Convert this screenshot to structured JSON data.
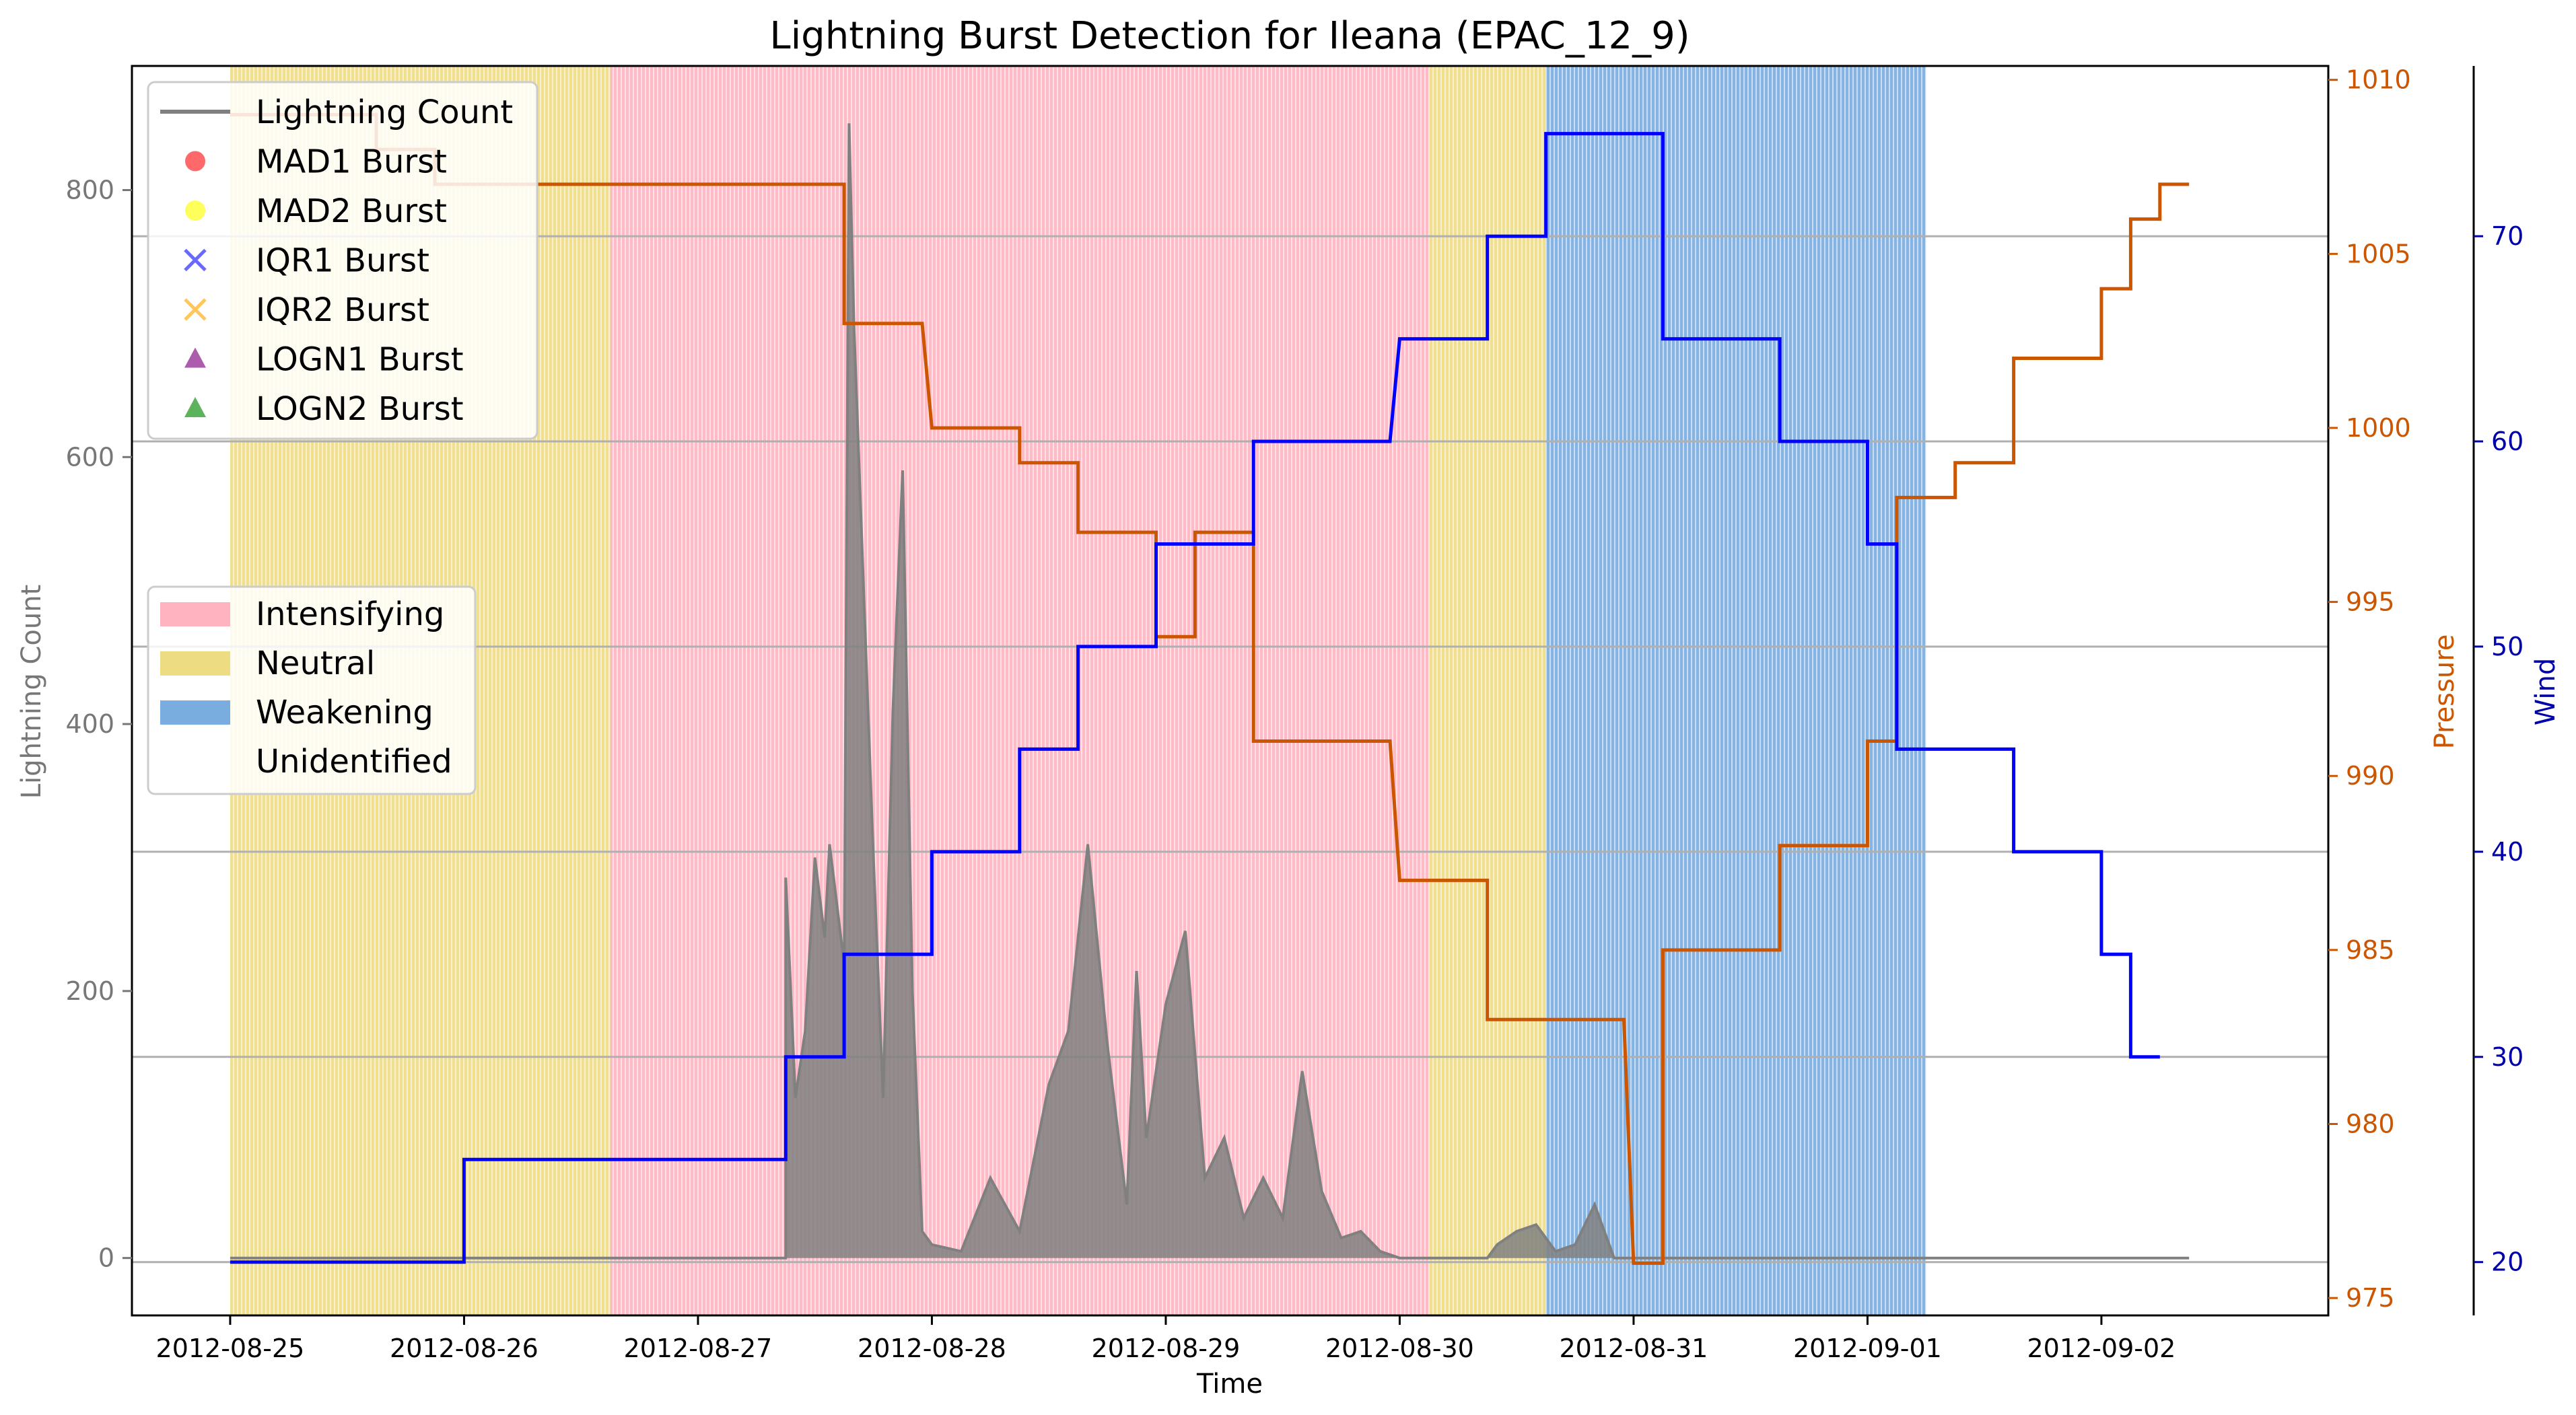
{
  "chart_data": {
    "type": "line",
    "title": "Lightning Burst Detection for Ileana (EPAC_12_9)",
    "xlabel": "Time",
    "ylabel_left": "Lightning Count",
    "ylabel_right_pressure": "Pressure",
    "ylabel_right_wind": "Wind",
    "x_ticks": [
      "2012-08-25",
      "2012-08-26",
      "2012-08-27",
      "2012-08-28",
      "2012-08-29",
      "2012-08-30",
      "2012-08-31",
      "2012-09-01",
      "2012-09-02"
    ],
    "x_range_days": [
      -0.42,
      8.97
    ],
    "y_left": {
      "ticks": [
        0,
        200,
        400,
        600,
        800
      ],
      "range": [
        -43,
        893
      ]
    },
    "y_pressure": {
      "ticks": [
        975,
        980,
        985,
        990,
        995,
        1000,
        1005,
        1010
      ],
      "range": [
        974.5,
        1010.4
      ]
    },
    "y_wind": {
      "ticks": [
        20,
        30,
        40,
        50,
        60,
        70
      ],
      "range": [
        17.4,
        78.3
      ]
    },
    "grid": "horizontal lines at wind ticks",
    "colors": {
      "lightning": "#808080",
      "pressure": "#cc5500",
      "wind": "#0000ff",
      "intensifying": "#ffb3c1",
      "neutral": "#eedc82",
      "weakening": "#79acdf",
      "mad1": "#ff4444",
      "mad2": "#ffff33",
      "iqr1": "#4444ff",
      "iqr2": "#ffb833",
      "logn1": "#993399",
      "logn2": "#33a033"
    },
    "phases": [
      {
        "label": "Neutral",
        "start": "2012-08-25 00:00",
        "end": "2012-08-26 15:00"
      },
      {
        "label": "Intensifying",
        "start": "2012-08-26 15:00",
        "end": "2012-08-30 03:00"
      },
      {
        "label": "Neutral",
        "start": "2012-08-30 03:00",
        "end": "2012-08-30 15:00"
      },
      {
        "label": "Weakening",
        "start": "2012-08-30 15:00",
        "end": "2012-09-01 06:00"
      }
    ],
    "legend_lines": [
      "Lightning Count",
      "MAD1 Burst",
      "MAD2 Burst",
      "IQR1 Burst",
      "IQR2 Burst",
      "LOGN1 Burst",
      "LOGN2 Burst"
    ],
    "legend_phases": [
      "Intensifying",
      "Neutral",
      "Weakening",
      "Unidentified"
    ],
    "legend_placement": [
      "upper-left",
      "center-left"
    ],
    "pressure_series": [
      [
        "2012-08-25 00:00",
        1009
      ],
      [
        "2012-08-25 15:00",
        1009
      ],
      [
        "2012-08-25 15:00",
        1008
      ],
      [
        "2012-08-25 21:00",
        1008
      ],
      [
        "2012-08-25 21:00",
        1007
      ],
      [
        "2012-08-27 15:00",
        1007
      ],
      [
        "2012-08-27 15:00",
        1003
      ],
      [
        "2012-08-27 23:00",
        1003
      ],
      [
        "2012-08-28 00:00",
        1000
      ],
      [
        "2012-08-28 09:00",
        1000
      ],
      [
        "2012-08-28 09:00",
        999
      ],
      [
        "2012-08-28 15:00",
        999
      ],
      [
        "2012-08-28 15:00",
        997
      ],
      [
        "2012-08-28 23:00",
        997
      ],
      [
        "2012-08-28 23:00",
        994
      ],
      [
        "2012-08-29 03:00",
        994
      ],
      [
        "2012-08-29 03:00",
        997
      ],
      [
        "2012-08-29 09:00",
        997
      ],
      [
        "2012-08-29 09:00",
        991
      ],
      [
        "2012-08-29 23:00",
        991
      ],
      [
        "2012-08-30 00:00",
        987
      ],
      [
        "2012-08-30 09:00",
        987
      ],
      [
        "2012-08-30 09:00",
        983
      ],
      [
        "2012-08-30 23:00",
        983
      ],
      [
        "2012-08-31 00:00",
        976
      ],
      [
        "2012-08-31 03:00",
        976
      ],
      [
        "2012-08-31 03:00",
        985
      ],
      [
        "2012-08-31 15:00",
        985
      ],
      [
        "2012-08-31 15:00",
        988
      ],
      [
        "2012-09-01 00:00",
        988
      ],
      [
        "2012-09-01 00:00",
        991
      ],
      [
        "2012-09-01 03:00",
        991
      ],
      [
        "2012-09-01 03:00",
        998
      ],
      [
        "2012-09-01 09:00",
        998
      ],
      [
        "2012-09-01 09:00",
        999
      ],
      [
        "2012-09-01 15:00",
        999
      ],
      [
        "2012-09-01 15:00",
        1002
      ],
      [
        "2012-09-02 00:00",
        1002
      ],
      [
        "2012-09-02 00:00",
        1004
      ],
      [
        "2012-09-02 03:00",
        1004
      ],
      [
        "2012-09-02 03:00",
        1006
      ],
      [
        "2012-09-02 06:00",
        1006
      ],
      [
        "2012-09-02 06:00",
        1007
      ],
      [
        "2012-09-02 09:00",
        1007
      ]
    ],
    "wind_series": [
      [
        "2012-08-25 00:00",
        20
      ],
      [
        "2012-08-26 00:00",
        20
      ],
      [
        "2012-08-26 00:00",
        25
      ],
      [
        "2012-08-27 09:00",
        25
      ],
      [
        "2012-08-27 09:00",
        30
      ],
      [
        "2012-08-27 15:00",
        30
      ],
      [
        "2012-08-27 15:00",
        35
      ],
      [
        "2012-08-28 00:00",
        35
      ],
      [
        "2012-08-28 00:00",
        40
      ],
      [
        "2012-08-28 09:00",
        40
      ],
      [
        "2012-08-28 09:00",
        45
      ],
      [
        "2012-08-28 15:00",
        45
      ],
      [
        "2012-08-28 15:00",
        50
      ],
      [
        "2012-08-28 23:00",
        50
      ],
      [
        "2012-08-28 23:00",
        55
      ],
      [
        "2012-08-29 09:00",
        55
      ],
      [
        "2012-08-29 09:00",
        60
      ],
      [
        "2012-08-29 23:00",
        60
      ],
      [
        "2012-08-30 00:00",
        65
      ],
      [
        "2012-08-30 09:00",
        65
      ],
      [
        "2012-08-30 09:00",
        70
      ],
      [
        "2012-08-30 15:00",
        70
      ],
      [
        "2012-08-30 15:00",
        75
      ],
      [
        "2012-08-31 03:00",
        75
      ],
      [
        "2012-08-31 03:00",
        65
      ],
      [
        "2012-08-31 15:00",
        65
      ],
      [
        "2012-08-31 15:00",
        60
      ],
      [
        "2012-09-01 00:00",
        60
      ],
      [
        "2012-09-01 00:00",
        55
      ],
      [
        "2012-09-01 03:00",
        55
      ],
      [
        "2012-09-01 03:00",
        45
      ],
      [
        "2012-09-01 15:00",
        45
      ],
      [
        "2012-09-01 15:00",
        40
      ],
      [
        "2012-09-02 00:00",
        40
      ],
      [
        "2012-09-02 00:00",
        35
      ],
      [
        "2012-09-02 03:00",
        35
      ],
      [
        "2012-09-02 03:00",
        30
      ],
      [
        "2012-09-02 06:00",
        30
      ]
    ],
    "lightning_series": [
      [
        "2012-08-25 00:00",
        0
      ],
      [
        "2012-08-27 09:00",
        0
      ],
      [
        "2012-08-27 09:00",
        285
      ],
      [
        "2012-08-27 10:00",
        120
      ],
      [
        "2012-08-27 11:00",
        170
      ],
      [
        "2012-08-27 12:00",
        300
      ],
      [
        "2012-08-27 13:00",
        240
      ],
      [
        "2012-08-27 13:30",
        310
      ],
      [
        "2012-08-27 14:00",
        280
      ],
      [
        "2012-08-27 15:00",
        220
      ],
      [
        "2012-08-27 15:30",
        850
      ],
      [
        "2012-08-27 16:00",
        700
      ],
      [
        "2012-08-27 17:00",
        500
      ],
      [
        "2012-08-27 18:00",
        300
      ],
      [
        "2012-08-27 19:00",
        120
      ],
      [
        "2012-08-27 20:00",
        410
      ],
      [
        "2012-08-27 21:00",
        590
      ],
      [
        "2012-08-27 22:00",
        200
      ],
      [
        "2012-08-27 23:00",
        20
      ],
      [
        "2012-08-28 00:00",
        10
      ],
      [
        "2012-08-28 03:00",
        5
      ],
      [
        "2012-08-28 06:00",
        60
      ],
      [
        "2012-08-28 09:00",
        20
      ],
      [
        "2012-08-28 12:00",
        130
      ],
      [
        "2012-08-28 14:00",
        170
      ],
      [
        "2012-08-28 16:00",
        310
      ],
      [
        "2012-08-28 18:00",
        160
      ],
      [
        "2012-08-28 20:00",
        40
      ],
      [
        "2012-08-28 21:00",
        215
      ],
      [
        "2012-08-28 22:00",
        90
      ],
      [
        "2012-08-29 00:00",
        190
      ],
      [
        "2012-08-29 02:00",
        245
      ],
      [
        "2012-08-29 04:00",
        60
      ],
      [
        "2012-08-29 06:00",
        90
      ],
      [
        "2012-08-29 08:00",
        30
      ],
      [
        "2012-08-29 10:00",
        60
      ],
      [
        "2012-08-29 12:00",
        30
      ],
      [
        "2012-08-29 14:00",
        140
      ],
      [
        "2012-08-29 16:00",
        50
      ],
      [
        "2012-08-29 18:00",
        15
      ],
      [
        "2012-08-29 20:00",
        20
      ],
      [
        "2012-08-29 22:00",
        5
      ],
      [
        "2012-08-30 00:00",
        0
      ],
      [
        "2012-08-30 09:00",
        0
      ],
      [
        "2012-08-30 10:00",
        10
      ],
      [
        "2012-08-30 12:00",
        20
      ],
      [
        "2012-08-30 14:00",
        25
      ],
      [
        "2012-08-30 16:00",
        5
      ],
      [
        "2012-08-30 18:00",
        10
      ],
      [
        "2012-08-30 20:00",
        40
      ],
      [
        "2012-08-30 22:00",
        0
      ],
      [
        "2012-09-02 09:00",
        0
      ]
    ],
    "burst_markers": []
  }
}
